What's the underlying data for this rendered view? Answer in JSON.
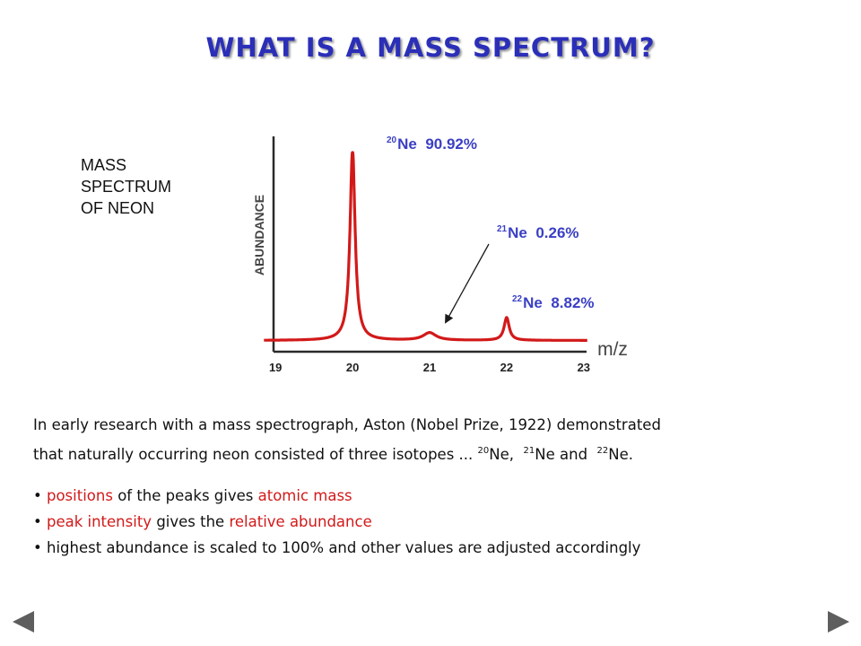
{
  "title": "WHAT IS A MASS SPECTRUM?",
  "side_label": [
    "MASS",
    "SPECTRUM",
    "OF NEON"
  ],
  "chart_data": {
    "type": "line",
    "xlabel": "m/z",
    "ylabel": "ABUNDANCE",
    "x_ticks": [
      "19",
      "20",
      "21",
      "22",
      "23"
    ],
    "xlim": [
      18.8,
      23.2
    ],
    "peaks": [
      {
        "isotope": "Ne",
        "mass_number": "20",
        "mz": 20,
        "percent": "90.92%",
        "relative_height": 1.0
      },
      {
        "isotope": "Ne",
        "mass_number": "21",
        "mz": 21,
        "percent": "0.26%",
        "relative_height": 0.04
      },
      {
        "isotope": "Ne",
        "mass_number": "22",
        "mz": 22,
        "percent": "8.82%",
        "relative_height": 0.12
      }
    ]
  },
  "paragraph": {
    "line1": "In early research with a mass spectrograph, Aston (Nobel Prize, 1922) demonstrated",
    "line2_prefix": "that naturally occurring neon consisted of three isotopes ...",
    "iso1_sup": "20",
    "iso1_text": "Ne,",
    "iso2_sup": "21",
    "iso2_text": "Ne and",
    "iso3_sup": "22",
    "iso3_text": "Ne."
  },
  "bullets": {
    "b1": {
      "red1": "positions",
      "text1": "of the peaks gives",
      "red2": "atomic mass"
    },
    "b2": {
      "red1": "peak intensity",
      "text1": "gives the",
      "red2": "relative abundance"
    },
    "b3": {
      "text": "highest abundance is scaled to 100% and other values are adjusted accordingly"
    }
  },
  "nav": {
    "prev": "previous-slide",
    "next": "next-slide"
  },
  "colors": {
    "title": "#2b2fb8",
    "trace": "#d21919",
    "peak_label": "#3a3fc4",
    "axis": "#2a2a2a"
  }
}
